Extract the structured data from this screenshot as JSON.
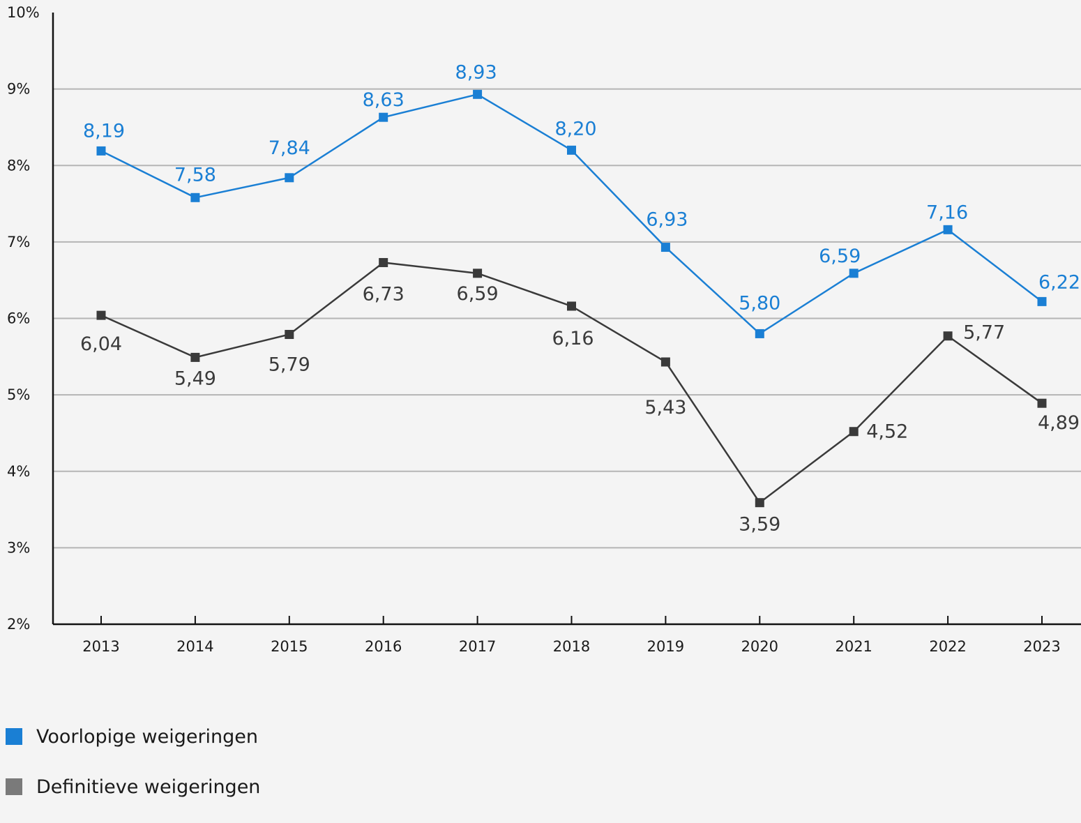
{
  "chart_data": {
    "type": "line",
    "categories": [
      "2013",
      "2014",
      "2015",
      "2016",
      "2017",
      "2018",
      "2019",
      "2020",
      "2021",
      "2022",
      "2023"
    ],
    "ylim": [
      2,
      10
    ],
    "yticks": [
      "2%",
      "3%",
      "4%",
      "5%",
      "6%",
      "7%",
      "8%",
      "9%",
      "10%"
    ],
    "grid": true,
    "legend_position": "bottom-left",
    "series": [
      {
        "name": "Voorlopige weigeringen",
        "color": "#1a7fd4",
        "values": [
          8.19,
          7.58,
          7.84,
          8.63,
          8.93,
          8.2,
          6.93,
          5.8,
          6.59,
          7.16,
          6.22
        ],
        "labels": [
          "8,19",
          "7,58",
          "7,84",
          "8,63",
          "8,93",
          "8,20",
          "6,93",
          "5,80",
          "6,59",
          "7,16",
          "6,22"
        ]
      },
      {
        "name": "Definitieve weigeringen",
        "color": "#3a3a3a",
        "values": [
          6.04,
          5.49,
          5.79,
          6.73,
          6.59,
          6.16,
          5.43,
          3.59,
          4.52,
          5.77,
          4.89
        ],
        "labels": [
          "6,04",
          "5,49",
          "5,79",
          "6,73",
          "6,59",
          "6,16",
          "5,43",
          "3,59",
          "4,52",
          "5,77",
          "4,89"
        ]
      }
    ]
  },
  "legend": {
    "items": [
      {
        "label": "Voorlopige weigeringen",
        "color": "#1a7fd4"
      },
      {
        "label": "Definitieve weigeringen",
        "color": "#7a7a7a"
      }
    ]
  }
}
